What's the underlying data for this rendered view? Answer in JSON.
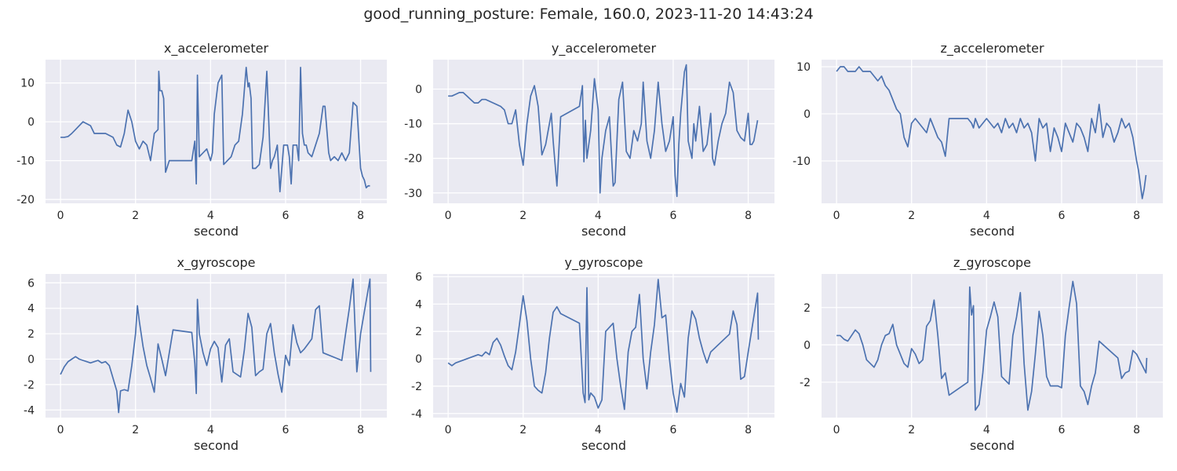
{
  "figure": {
    "suptitle": "good_running_posture: Female, 160.0, 2023-11-20 14:43:24",
    "background": "#ffffff",
    "axes_face": "#eaeaf2",
    "grid_color": "#ffffff",
    "line_color": "#4c72b0",
    "text_color": "#262626"
  },
  "chart_data": [
    {
      "type": "line",
      "title": "x_accelerometer",
      "xlabel": "second",
      "ylabel": "",
      "xlim": [
        -0.4,
        8.7
      ],
      "ylim": [
        -21,
        16
      ],
      "xticks": [
        0,
        2,
        4,
        6,
        8
      ],
      "yticks": [
        -20,
        -10,
        0,
        10
      ],
      "grid": true,
      "x": [
        0,
        0.1,
        0.2,
        0.3,
        0.4,
        0.5,
        0.6,
        0.7,
        0.8,
        0.9,
        1.0,
        1.2,
        1.4,
        1.5,
        1.6,
        1.7,
        1.8,
        1.9,
        2.0,
        2.1,
        2.2,
        2.3,
        2.4,
        2.5,
        2.6,
        2.62,
        2.65,
        2.7,
        2.75,
        2.8,
        2.9,
        3.0,
        3.5,
        3.58,
        3.62,
        3.65,
        3.7,
        3.8,
        3.9,
        4.0,
        4.05,
        4.1,
        4.2,
        4.3,
        4.35,
        4.45,
        4.55,
        4.65,
        4.75,
        4.85,
        4.95,
        5.0,
        5.03,
        5.08,
        5.12,
        5.2,
        5.3,
        5.4,
        5.5,
        5.6,
        5.65,
        5.7,
        5.78,
        5.85,
        5.95,
        6.05,
        6.1,
        6.15,
        6.2,
        6.3,
        6.35,
        6.4,
        6.45,
        6.5,
        6.55,
        6.6,
        6.7,
        6.8,
        6.9,
        7.0,
        7.05,
        7.1,
        7.15,
        7.2,
        7.3,
        7.4,
        7.5,
        7.6,
        7.7,
        7.8,
        7.9,
        8.0,
        8.05,
        8.1,
        8.15,
        8.2,
        8.25
      ],
      "values": [
        -4,
        -4,
        -3.8,
        -3,
        -2,
        -1,
        0,
        -0.5,
        -1,
        -3,
        -3,
        -3,
        -4,
        -6,
        -6.5,
        -3,
        3,
        0,
        -5,
        -7,
        -5,
        -6,
        -10,
        -3,
        -2,
        13,
        8,
        8,
        6,
        -13,
        -10,
        -10,
        -10,
        -5,
        -16,
        12,
        -9,
        -8,
        -7,
        -10,
        -8,
        2,
        10,
        12,
        -11,
        -10,
        -9,
        -6,
        -5,
        2,
        14,
        9,
        10,
        6,
        -12,
        -12,
        -11,
        -4,
        13,
        -12,
        -10,
        -9,
        -6,
        -18,
        -6,
        -6,
        -9,
        -16,
        -6,
        -6,
        -10,
        14,
        -3,
        -6,
        -6,
        -8,
        -9,
        -6,
        -3,
        4,
        4,
        -2,
        -8,
        -10,
        -9,
        -10,
        -8,
        -10,
        -8,
        5,
        4,
        -12,
        -14,
        -15,
        -17,
        -16.5,
        -16.5
      ]
    },
    {
      "type": "line",
      "title": "y_accelerometer",
      "xlabel": "second",
      "ylabel": "",
      "xlim": [
        -0.4,
        8.7
      ],
      "ylim": [
        -33,
        8.5
      ],
      "xticks": [
        0,
        2,
        4,
        6,
        8
      ],
      "yticks": [
        -30,
        -20,
        -10,
        0
      ],
      "grid": true,
      "x": [
        0,
        0.1,
        0.2,
        0.3,
        0.4,
        0.5,
        0.6,
        0.7,
        0.8,
        0.9,
        1.0,
        1.2,
        1.4,
        1.5,
        1.6,
        1.7,
        1.8,
        1.9,
        2.0,
        2.1,
        2.2,
        2.3,
        2.4,
        2.5,
        2.6,
        2.7,
        2.75,
        2.8,
        2.9,
        3.0,
        3.5,
        3.58,
        3.62,
        3.66,
        3.7,
        3.8,
        3.9,
        4.0,
        4.05,
        4.1,
        4.2,
        4.3,
        4.4,
        4.45,
        4.55,
        4.65,
        4.75,
        4.85,
        4.95,
        5.05,
        5.15,
        5.2,
        5.3,
        5.4,
        5.5,
        5.6,
        5.7,
        5.8,
        5.9,
        6.0,
        6.05,
        6.1,
        6.15,
        6.2,
        6.3,
        6.35,
        6.4,
        6.5,
        6.55,
        6.6,
        6.7,
        6.8,
        6.9,
        7.0,
        7.05,
        7.1,
        7.2,
        7.3,
        7.4,
        7.5,
        7.6,
        7.7,
        7.8,
        7.9,
        8.0,
        8.05,
        8.1,
        8.15,
        8.2,
        8.25
      ],
      "values": [
        -2,
        -2,
        -1.5,
        -1,
        -1,
        -2,
        -3,
        -4,
        -4,
        -3,
        -3,
        -4,
        -5,
        -6,
        -10,
        -10,
        -6,
        -16,
        -22,
        -10,
        -2,
        1,
        -5,
        -19,
        -16,
        -10,
        -7,
        -15,
        -28,
        -8,
        -5,
        1,
        -21,
        -9,
        -20,
        -12,
        3,
        -6,
        -30,
        -20,
        -12,
        -8,
        -28,
        -27,
        -3,
        2,
        -18,
        -20,
        -12,
        -15,
        -10,
        2,
        -15,
        -20,
        -12,
        2,
        -10,
        -18,
        -15,
        -8,
        -25,
        -31,
        -16,
        -7,
        5,
        7,
        -15,
        -20,
        -10,
        -15,
        -5,
        -18,
        -16,
        -7,
        -20,
        -22,
        -15,
        -10,
        -7,
        2,
        -1,
        -12,
        -14,
        -15,
        -7,
        -16,
        -16,
        -15,
        -12,
        -9
      ]
    },
    {
      "type": "line",
      "title": "z_accelerometer",
      "xlabel": "second",
      "ylabel": "",
      "xlim": [
        -0.4,
        8.7
      ],
      "ylim": [
        -19,
        11.5
      ],
      "xticks": [
        0,
        2,
        4,
        6,
        8
      ],
      "yticks": [
        -10,
        0,
        10
      ],
      "grid": true,
      "x": [
        0,
        0.1,
        0.2,
        0.3,
        0.4,
        0.5,
        0.6,
        0.7,
        0.8,
        0.9,
        1.0,
        1.1,
        1.2,
        1.3,
        1.4,
        1.5,
        1.6,
        1.7,
        1.8,
        1.9,
        2.0,
        2.1,
        2.2,
        2.3,
        2.4,
        2.5,
        2.6,
        2.7,
        2.8,
        2.9,
        3.0,
        3.5,
        3.6,
        3.65,
        3.7,
        3.8,
        3.9,
        4.0,
        4.1,
        4.2,
        4.3,
        4.4,
        4.5,
        4.6,
        4.7,
        4.8,
        4.9,
        5.0,
        5.1,
        5.2,
        5.3,
        5.4,
        5.5,
        5.6,
        5.7,
        5.8,
        5.9,
        6.0,
        6.1,
        6.2,
        6.3,
        6.4,
        6.5,
        6.6,
        6.7,
        6.8,
        6.9,
        7.0,
        7.1,
        7.2,
        7.3,
        7.4,
        7.5,
        7.6,
        7.7,
        7.8,
        7.9,
        8.0,
        8.05,
        8.1,
        8.15,
        8.2,
        8.25
      ],
      "values": [
        9,
        10,
        10,
        9,
        9,
        9,
        10,
        9,
        9,
        9,
        8,
        7,
        8,
        6,
        5,
        3,
        1,
        0,
        -5,
        -7,
        -2,
        -1,
        -2,
        -3,
        -4,
        -1,
        -3,
        -5,
        -6,
        -9,
        -1,
        -1,
        -2,
        -3,
        -1,
        -3,
        -2,
        -1,
        -2,
        -3,
        -2,
        -4,
        -1,
        -3,
        -2,
        -4,
        -1,
        -3,
        -2,
        -4,
        -10,
        -1,
        -3,
        -2,
        -8,
        -3,
        -5,
        -8,
        -2,
        -4,
        -6,
        -2,
        -3,
        -5,
        -8,
        -1,
        -4,
        2,
        -5,
        -2,
        -3,
        -6,
        -4,
        -1,
        -3,
        -2,
        -5,
        -10,
        -12,
        -15,
        -18,
        -16,
        -13
      ]
    },
    {
      "type": "line",
      "title": "x_gyroscope",
      "xlabel": "second",
      "ylabel": "",
      "xlim": [
        -0.4,
        8.7
      ],
      "ylim": [
        -4.6,
        6.7
      ],
      "xticks": [
        0,
        2,
        4,
        6,
        8
      ],
      "yticks": [
        -4,
        -2,
        0,
        2,
        4,
        6
      ],
      "grid": true,
      "x": [
        0,
        0.1,
        0.2,
        0.3,
        0.4,
        0.5,
        0.6,
        0.7,
        0.8,
        0.9,
        1.0,
        1.1,
        1.2,
        1.3,
        1.4,
        1.5,
        1.55,
        1.6,
        1.7,
        1.8,
        1.9,
        2.0,
        2.05,
        2.1,
        2.2,
        2.3,
        2.4,
        2.5,
        2.6,
        2.7,
        2.8,
        2.9,
        3.0,
        3.5,
        3.58,
        3.62,
        3.65,
        3.7,
        3.8,
        3.9,
        4.0,
        4.1,
        4.2,
        4.3,
        4.4,
        4.5,
        4.6,
        4.7,
        4.8,
        4.9,
        5.0,
        5.1,
        5.2,
        5.3,
        5.4,
        5.5,
        5.6,
        5.7,
        5.8,
        5.9,
        6.0,
        6.1,
        6.2,
        6.3,
        6.4,
        6.5,
        6.6,
        6.7,
        6.8,
        6.9,
        7.0,
        7.5,
        7.6,
        7.7,
        7.8,
        7.9,
        8.0,
        8.25,
        8.27
      ],
      "values": [
        -1.2,
        -0.6,
        -0.2,
        0,
        0.2,
        0,
        -0.1,
        -0.2,
        -0.3,
        -0.2,
        -0.1,
        -0.3,
        -0.2,
        -0.5,
        -1.5,
        -2.5,
        -4.2,
        -2.5,
        -2.4,
        -2.5,
        -0.5,
        2,
        4.2,
        3,
        1,
        -0.5,
        -1.5,
        -2.6,
        1.2,
        0,
        -1.3,
        0.5,
        2.3,
        2.1,
        -0.3,
        -2.7,
        4.7,
        2,
        0.5,
        -0.5,
        0.8,
        1.4,
        0.9,
        -1.8,
        1.1,
        1.6,
        -1,
        -1.2,
        -1.4,
        0.7,
        3.6,
        2.5,
        -1.3,
        -1,
        -0.8,
        2,
        2.8,
        0.5,
        -1.2,
        -2.6,
        0.3,
        -0.5,
        2.7,
        1.3,
        0.5,
        0.8,
        1.2,
        1.6,
        3.9,
        4.2,
        0.5,
        -0.1,
        2,
        4,
        6.3,
        -1,
        2,
        6.3,
        -1
      ]
    },
    {
      "type": "line",
      "title": "y_gyroscope",
      "xlabel": "second",
      "ylabel": "",
      "xlim": [
        -0.4,
        8.7
      ],
      "ylim": [
        -4.3,
        6.2
      ],
      "xticks": [
        0,
        2,
        4,
        6,
        8
      ],
      "yticks": [
        -4,
        -2,
        0,
        2,
        4,
        6
      ],
      "grid": true,
      "x": [
        0,
        0.1,
        0.2,
        0.3,
        0.4,
        0.5,
        0.6,
        0.7,
        0.8,
        0.9,
        1.0,
        1.1,
        1.2,
        1.3,
        1.4,
        1.5,
        1.6,
        1.7,
        1.8,
        1.9,
        2.0,
        2.1,
        2.2,
        2.3,
        2.4,
        2.5,
        2.6,
        2.7,
        2.8,
        2.9,
        3.0,
        3.5,
        3.6,
        3.65,
        3.7,
        3.75,
        3.8,
        3.9,
        4.0,
        4.1,
        4.2,
        4.3,
        4.4,
        4.5,
        4.6,
        4.7,
        4.8,
        4.9,
        5.0,
        5.1,
        5.2,
        5.3,
        5.4,
        5.5,
        5.6,
        5.7,
        5.8,
        5.9,
        6.0,
        6.1,
        6.2,
        6.3,
        6.4,
        6.5,
        6.6,
        6.7,
        6.8,
        6.9,
        7.0,
        7.5,
        7.6,
        7.7,
        7.8,
        7.9,
        8.0,
        8.25,
        8.27
      ],
      "values": [
        -0.3,
        -0.5,
        -0.3,
        -0.2,
        -0.1,
        0,
        0.1,
        0.2,
        0.3,
        0.2,
        0.5,
        0.3,
        1.2,
        1.5,
        1,
        0.2,
        -0.5,
        -0.8,
        0.5,
        2.5,
        4.6,
        2.8,
        0,
        -2,
        -2.3,
        -2.5,
        -1,
        1.5,
        3.4,
        3.8,
        3.3,
        2.6,
        -2.5,
        -3.2,
        5.2,
        -3,
        -2.5,
        -2.8,
        -3.6,
        -3,
        2,
        2.3,
        2.6,
        0,
        -2,
        -3.7,
        0.5,
        2,
        2.3,
        4.7,
        0,
        -2.2,
        0.5,
        2.5,
        5.8,
        3,
        3.2,
        0,
        -2.5,
        -3.9,
        -1.8,
        -2.8,
        1.5,
        3.5,
        2.9,
        1.5,
        0.5,
        -0.3,
        0.5,
        1.8,
        3.5,
        2.5,
        -1.5,
        -1.3,
        0.5,
        4.8,
        1.4
      ]
    },
    {
      "type": "line",
      "title": "z_gyroscope",
      "xlabel": "second",
      "ylabel": "",
      "xlim": [
        -0.4,
        8.7
      ],
      "ylim": [
        -3.9,
        3.8
      ],
      "xticks": [
        0,
        2,
        4,
        6,
        8
      ],
      "yticks": [
        -2,
        0,
        2
      ],
      "grid": true,
      "x": [
        0,
        0.1,
        0.2,
        0.3,
        0.4,
        0.5,
        0.6,
        0.7,
        0.8,
        0.9,
        1.0,
        1.1,
        1.2,
        1.3,
        1.4,
        1.5,
        1.6,
        1.7,
        1.8,
        1.9,
        2.0,
        2.1,
        2.2,
        2.3,
        2.4,
        2.5,
        2.6,
        2.7,
        2.8,
        2.9,
        3.0,
        3.5,
        3.55,
        3.6,
        3.65,
        3.7,
        3.8,
        3.9,
        4.0,
        4.1,
        4.2,
        4.3,
        4.4,
        4.5,
        4.6,
        4.7,
        4.8,
        4.9,
        5.0,
        5.1,
        5.2,
        5.3,
        5.4,
        5.5,
        5.6,
        5.7,
        5.8,
        5.9,
        6.0,
        6.1,
        6.2,
        6.3,
        6.4,
        6.5,
        6.6,
        6.7,
        6.8,
        6.9,
        7.0,
        7.5,
        7.6,
        7.7,
        7.8,
        7.9,
        8.0,
        8.25,
        8.27
      ],
      "values": [
        0.5,
        0.5,
        0.3,
        0.2,
        0.5,
        0.8,
        0.6,
        0,
        -0.8,
        -1,
        -1.2,
        -0.8,
        0,
        0.5,
        0.6,
        1.1,
        0,
        -0.5,
        -1,
        -1.2,
        -0.2,
        -0.5,
        -1,
        -0.8,
        1,
        1.3,
        2.4,
        0.5,
        -1.8,
        -1.5,
        -2.7,
        -2.0,
        3.1,
        1.6,
        2.1,
        -3.5,
        -3.2,
        -1.5,
        0.8,
        1.5,
        2.3,
        1.5,
        -1.7,
        -1.9,
        -2.1,
        0.5,
        1.5,
        2.8,
        -1,
        -3.5,
        -2.5,
        -0.5,
        1.8,
        0.5,
        -1.7,
        -2.2,
        -2.2,
        -2.2,
        -2.3,
        0.5,
        2,
        3.4,
        2.2,
        -2.2,
        -2.5,
        -3.2,
        -2.2,
        -1.5,
        0.2,
        -0.7,
        -1.8,
        -1.5,
        -1.4,
        -0.3,
        -0.5,
        -1.5,
        -0.7
      ]
    }
  ]
}
